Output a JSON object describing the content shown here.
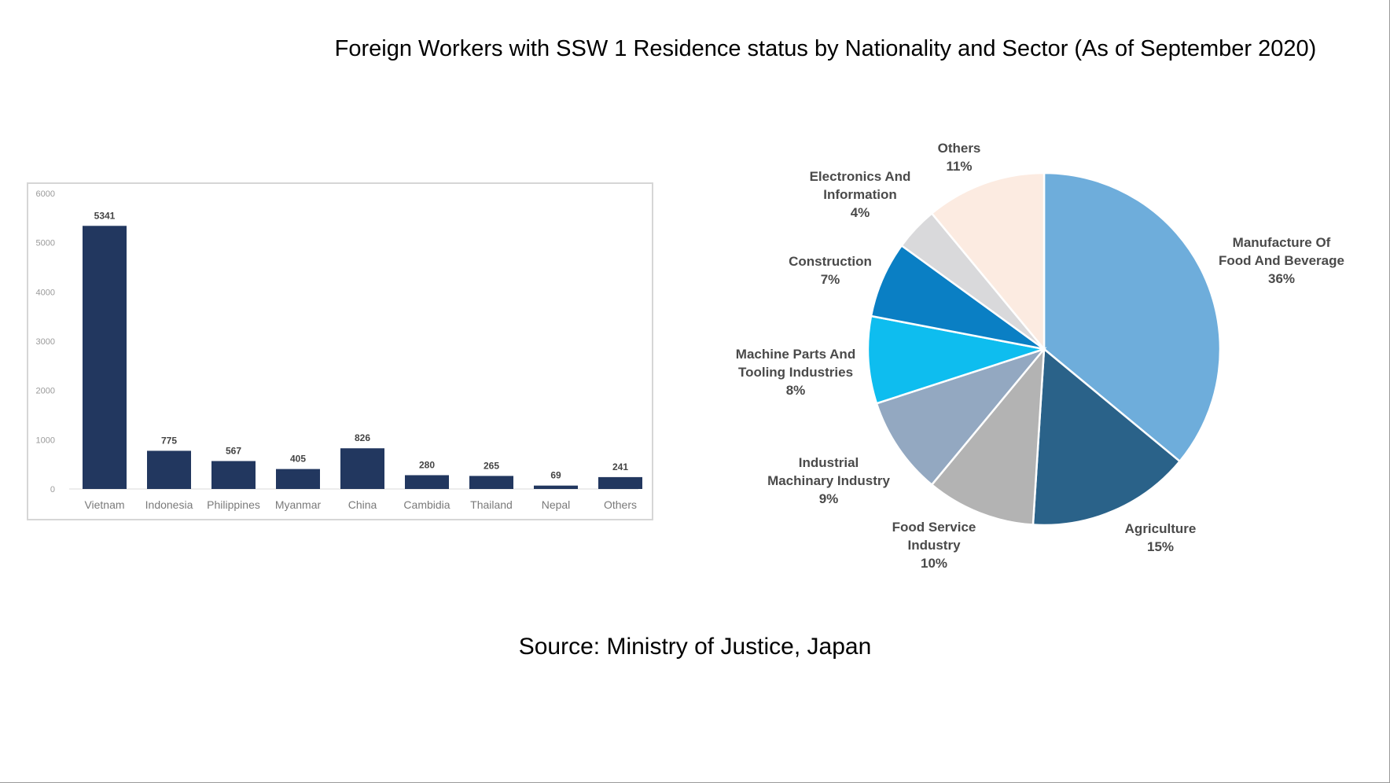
{
  "title": "Foreign Workers with SSW 1 Residence status by Nationality  and Sector (As of September 2020)",
  "source": "Source: Ministry of Justice, Japan",
  "colors": {
    "bar": "#22375f",
    "pie": [
      "#6eaddb",
      "#2a6289",
      "#b3b3b3",
      "#93a8c1",
      "#0ebdef",
      "#0a7fc4",
      "#d9d9db",
      "#fcebe1"
    ]
  },
  "chart_data": [
    {
      "type": "bar",
      "title": "",
      "xlabel": "",
      "ylabel": "",
      "ylim": [
        0,
        6000
      ],
      "yticks": [
        0,
        1000,
        2000,
        3000,
        4000,
        5000,
        6000
      ],
      "categories": [
        "Vietnam",
        "Indonesia",
        "Philippines",
        "Myanmar",
        "China",
        "Cambidia",
        "Thailand",
        "Nepal",
        "Others"
      ],
      "values": [
        5341,
        775,
        567,
        405,
        826,
        280,
        265,
        69,
        241
      ]
    },
    {
      "type": "pie",
      "slices": [
        {
          "lines": [
            "Manufacture Of",
            "Food And Beverage"
          ],
          "percent": 36
        },
        {
          "lines": [
            "Agriculture"
          ],
          "percent": 15
        },
        {
          "lines": [
            "Food Service",
            "Industry"
          ],
          "percent": 10
        },
        {
          "lines": [
            "Industrial",
            "Machinary Industry"
          ],
          "percent": 9
        },
        {
          "lines": [
            "Machine Parts And",
            "Tooling Industries"
          ],
          "percent": 8
        },
        {
          "lines": [
            "Construction"
          ],
          "percent": 7
        },
        {
          "lines": [
            "Electronics And",
            "Information"
          ],
          "percent": 4
        },
        {
          "lines": [
            "Others"
          ],
          "percent": 11
        }
      ]
    }
  ]
}
